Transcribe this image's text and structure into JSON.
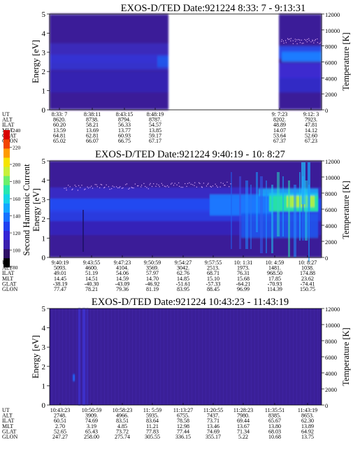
{
  "colors": {
    "background": "#3a1f98",
    "colormap": [
      "#000000",
      "#2e0f66",
      "#3b1eae",
      "#3324d6",
      "#1f41f0",
      "#1672ff",
      "#11a8ff",
      "#14d6e6",
      "#27e7b0",
      "#6cf06c",
      "#c8f03a",
      "#f6e400",
      "#ff9b00",
      "#f24400",
      "#d80000"
    ]
  },
  "chart_data": [
    {
      "type": "heatmap",
      "title": "EXOS-D/TED   Date:921224   8:33: 7 - 9:13:31",
      "ylabel": "Energy [eV]",
      "y2label": "Temperature [K]",
      "ylim": [
        0,
        5
      ],
      "y2lim": [
        0,
        12000
      ],
      "yticks": [
        "0",
        "1",
        "2",
        "3",
        "4",
        "5"
      ],
      "y2ticks": [
        "0",
        "2000",
        "4000",
        "6000",
        "8000",
        "10000",
        "12000"
      ],
      "data_gap": [
        "8:48:19",
        "9:7:23"
      ],
      "ephemeris": {
        "labels": [
          "UT",
          "ALT",
          "ILAT",
          "MLT",
          "GLAT",
          "GLON"
        ],
        "columns": [
          [
            "8:33: 7",
            "8620.",
            "60.20",
            "13.59",
            "64.81",
            "65.02"
          ],
          [
            "8:38:11",
            "8738.",
            "58.21",
            "13.69",
            "62.81",
            "66.07"
          ],
          [
            "8:43:15",
            "8794.",
            "56.33",
            "13.77",
            "60.93",
            "66.75"
          ],
          [
            "8:48:19",
            "8787.",
            "54.57",
            "13.85",
            "59.17",
            "67.17"
          ],
          [
            "9: 7:23",
            "8202.",
            "48.89",
            "14.07",
            "53.64",
            "67.37"
          ],
          [
            "9:12: 3",
            "7923.",
            "47.81",
            "14.12",
            "52.60",
            "67.23"
          ]
        ]
      }
    },
    {
      "type": "heatmap",
      "title": "EXOS-D/TED   Date:921224   9:40:19 - 10: 8:27",
      "ylabel": "Energy [eV]",
      "y2label": "Temperature [K]",
      "ylim": [
        0,
        5
      ],
      "y2lim": [
        0,
        12000
      ],
      "yticks": [
        "0",
        "1",
        "2",
        "3",
        "4",
        "5"
      ],
      "y2ticks": [
        "0",
        "2000",
        "4000",
        "6000",
        "8000",
        "10000",
        "12000"
      ],
      "colorbar": {
        "label": "Second Harmonic Current",
        "ticks": [
          "80",
          "100",
          "120",
          "140",
          "160",
          "180",
          "200",
          "220",
          "240"
        ],
        "range": [
          80,
          240
        ]
      },
      "ephemeris": {
        "labels": [
          "UT",
          "ALT",
          "ILAT",
          "MLT",
          "GLAT",
          "GLON"
        ],
        "columns": [
          [
            "9:40:19",
            "5093.",
            "49.01",
            "14.45",
            "-38.19",
            "77.47"
          ],
          [
            "9:43:55",
            "4600.",
            "51.19",
            "14.51",
            "-40.30",
            "78.21"
          ],
          [
            "9:47:23",
            "4104.",
            "54.06",
            "14.59",
            "-43.09",
            "79.36"
          ],
          [
            "9:50:59",
            "3569.",
            "57.97",
            "14.70",
            "-46.92",
            "81.19"
          ],
          [
            "9:54:27",
            "3042.",
            "62.76",
            "14.85",
            "-51.61",
            "83.95"
          ],
          [
            "9:57:55",
            "2513.",
            "68.71",
            "15.10",
            "-57.33",
            "88.45"
          ],
          [
            "10: 1:31",
            "1973.",
            "76.31",
            "15.68",
            "-64.21",
            "96.99"
          ],
          [
            "10: 4:59",
            "1481.",
            "968.50",
            "17.85",
            "-70.93",
            "114.39"
          ],
          [
            "10: 8:27",
            "1038.",
            "174.88",
            "23.62",
            "-74.41",
            "150.75"
          ]
        ]
      }
    },
    {
      "type": "heatmap",
      "title": "EXOS-D/TED   Date:921224   10:43:23 - 11:43:19",
      "ylabel": "Energy [eV]",
      "y2label": "Temperature [K]",
      "ylim": [
        0,
        5
      ],
      "y2lim": [
        0,
        12000
      ],
      "yticks": [
        "0",
        "1",
        "2",
        "3",
        "4",
        "5"
      ],
      "y2ticks": [
        "0",
        "2000",
        "4000",
        "6000",
        "8000",
        "10000",
        "12000"
      ],
      "ephemeris": {
        "labels": [
          "UT",
          "ALT",
          "ILAT",
          "MLT",
          "GLAT",
          "GLON"
        ],
        "columns": [
          [
            "10:43:23",
            "2748.",
            "60.51",
            "2.70",
            "52.65",
            "247.27"
          ],
          [
            "10:50:59",
            "3909.",
            "74.69",
            "3.19",
            "65.43",
            "258.00"
          ],
          [
            "10:58:23",
            "4966.",
            "83.51",
            "4.85",
            "73.72",
            "275.74"
          ],
          [
            "11: 5:59",
            "5935.",
            "83.64",
            "11.21",
            "77.83",
            "305.55"
          ],
          [
            "11:13:27",
            "6755.",
            "78.58",
            "12.98",
            "77.44",
            "336.15"
          ],
          [
            "11:20:55",
            "7437.",
            "73.71",
            "13.46",
            "74.69",
            "355.17"
          ],
          [
            "11:28:23",
            "7980.",
            "69.44",
            "13.67",
            "71.34",
            "5.22"
          ],
          [
            "11:35:51",
            "8385.",
            "65.67",
            "13.80",
            "68.03",
            "10.68"
          ],
          [
            "11:43:19",
            "8653.",
            "62.30",
            "13.89",
            "64.92",
            "13.75"
          ]
        ]
      }
    }
  ]
}
